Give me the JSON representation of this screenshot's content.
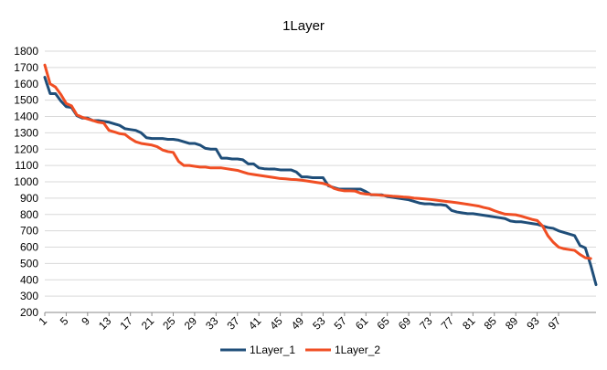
{
  "chart_data": {
    "type": "line",
    "title": "1Layer",
    "xlabel": "",
    "ylabel": "",
    "ylim": [
      200,
      1800
    ],
    "y_ticks": [
      200,
      300,
      400,
      500,
      600,
      700,
      800,
      900,
      1000,
      1100,
      1200,
      1300,
      1400,
      1500,
      1600,
      1700,
      1800
    ],
    "x_ticks": [
      1,
      5,
      9,
      13,
      17,
      21,
      25,
      29,
      33,
      37,
      41,
      45,
      49,
      53,
      57,
      61,
      65,
      69,
      73,
      77,
      81,
      85,
      89,
      93,
      97
    ],
    "grid": true,
    "legend_position": "bottom",
    "series": [
      {
        "name": "1Layer_1",
        "color": "#1f4e79",
        "values": [
          1640,
          1540,
          1540,
          1495,
          1460,
          1455,
          1405,
          1390,
          1390,
          1375,
          1375,
          1370,
          1365,
          1355,
          1345,
          1325,
          1320,
          1315,
          1300,
          1270,
          1265,
          1265,
          1265,
          1260,
          1260,
          1255,
          1245,
          1235,
          1235,
          1225,
          1205,
          1200,
          1200,
          1145,
          1145,
          1140,
          1140,
          1135,
          1110,
          1110,
          1085,
          1080,
          1078,
          1078,
          1073,
          1073,
          1073,
          1060,
          1030,
          1030,
          1025,
          1025,
          1025,
          975,
          965,
          955,
          955,
          955,
          955,
          955,
          940,
          920,
          920,
          920,
          910,
          905,
          900,
          895,
          890,
          880,
          870,
          865,
          865,
          860,
          860,
          855,
          825,
          815,
          810,
          805,
          805,
          800,
          795,
          790,
          785,
          780,
          775,
          760,
          755,
          755,
          750,
          745,
          740,
          730,
          720,
          715,
          700,
          690,
          680,
          670,
          610,
          595,
          490,
          370
        ]
      },
      {
        "name": "1Layer_2",
        "color": "#f04e23",
        "values": [
          1715,
          1600,
          1580,
          1535,
          1480,
          1465,
          1410,
          1395,
          1385,
          1375,
          1365,
          1360,
          1315,
          1305,
          1295,
          1290,
          1265,
          1245,
          1235,
          1230,
          1225,
          1215,
          1195,
          1185,
          1180,
          1125,
          1100,
          1100,
          1095,
          1090,
          1090,
          1085,
          1085,
          1085,
          1080,
          1075,
          1070,
          1060,
          1050,
          1045,
          1040,
          1035,
          1030,
          1025,
          1020,
          1018,
          1015,
          1013,
          1010,
          1005,
          1000,
          995,
          990,
          980,
          960,
          950,
          945,
          945,
          943,
          930,
          925,
          922,
          920,
          917,
          915,
          912,
          910,
          907,
          905,
          900,
          898,
          895,
          892,
          888,
          884,
          880,
          876,
          872,
          867,
          862,
          857,
          852,
          843,
          836,
          823,
          812,
          802,
          800,
          798,
          790,
          780,
          770,
          763,
          730,
          670,
          630,
          600,
          590,
          585,
          580,
          555,
          535,
          530
        ]
      }
    ]
  }
}
